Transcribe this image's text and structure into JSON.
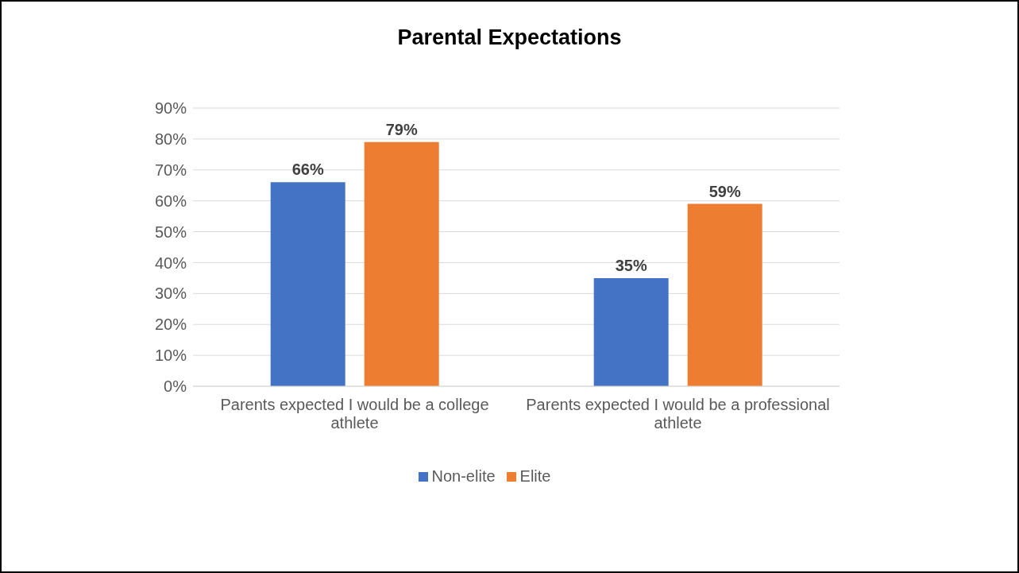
{
  "chart_data": {
    "type": "bar",
    "title": "Parental Expectations",
    "categories": [
      "Parents expected I would be a college athlete",
      "Parents expected I would be a professional athlete"
    ],
    "series": [
      {
        "name": "Non-elite",
        "color": "#4472c4",
        "values": [
          66,
          35
        ],
        "value_labels": [
          "66%",
          "35%"
        ]
      },
      {
        "name": "Elite",
        "color": "#ed7d31",
        "values": [
          79,
          59
        ],
        "value_labels": [
          "79%",
          "59%"
        ]
      }
    ],
    "ylim": [
      0,
      90
    ],
    "yticks": [
      {
        "value": 0,
        "label": "0%"
      },
      {
        "value": 10,
        "label": "10%"
      },
      {
        "value": 20,
        "label": "20%"
      },
      {
        "value": 30,
        "label": "30%"
      },
      {
        "value": 40,
        "label": "40%"
      },
      {
        "value": 50,
        "label": "50%"
      },
      {
        "value": 60,
        "label": "60%"
      },
      {
        "value": 70,
        "label": "70%"
      },
      {
        "value": 80,
        "label": "80%"
      },
      {
        "value": 90,
        "label": "90%"
      }
    ],
    "grid": "y",
    "legend": "bottom"
  }
}
